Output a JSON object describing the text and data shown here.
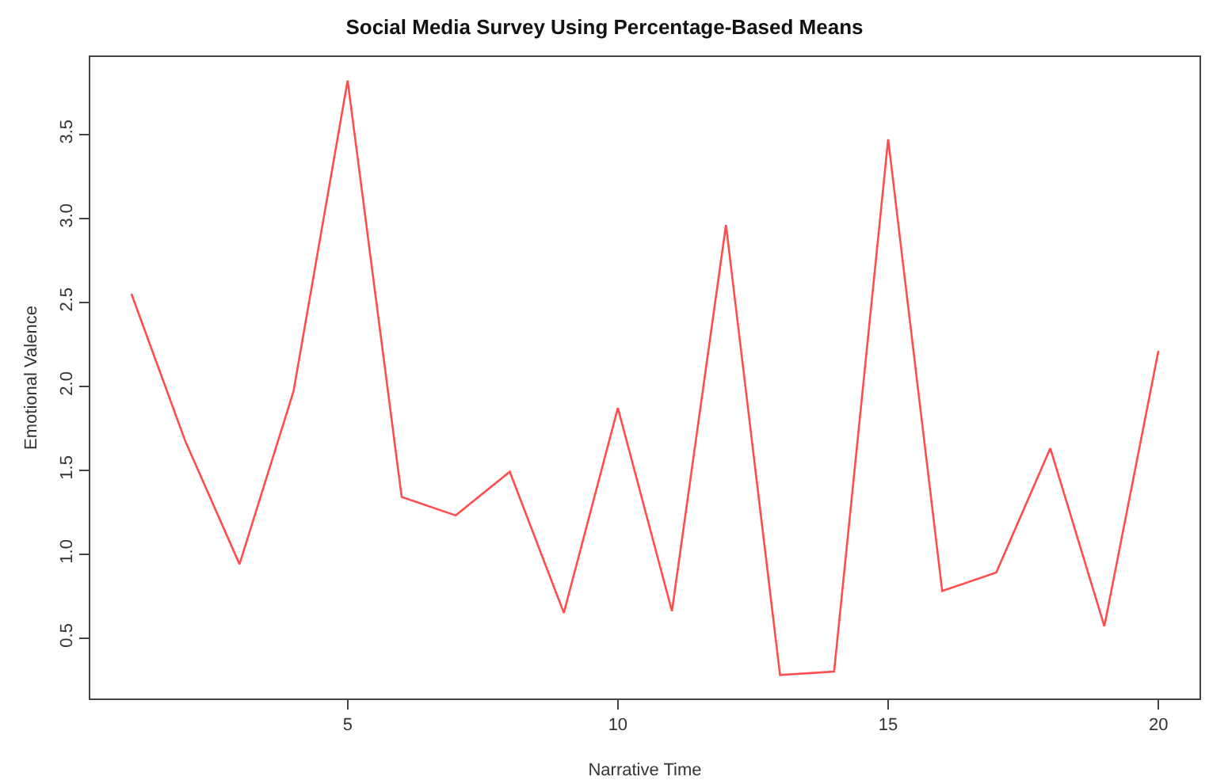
{
  "chart_data": {
    "type": "line",
    "title": "Social Media Survey Using Percentage-Based Means",
    "xlabel": "Narrative Time",
    "ylabel": "Emotional Valence",
    "x": [
      1,
      2,
      3,
      4,
      5,
      6,
      7,
      8,
      9,
      10,
      11,
      12,
      13,
      14,
      15,
      16,
      17,
      18,
      19,
      20
    ],
    "series": [
      {
        "color": "#ff4d4d",
        "values": [
          2.55,
          1.67,
          0.94,
          1.97,
          3.82,
          1.34,
          1.23,
          1.49,
          0.65,
          1.87,
          0.66,
          2.96,
          0.28,
          0.3,
          3.47,
          0.78,
          0.89,
          1.63,
          0.57,
          2.21
        ]
      }
    ],
    "xlim": [
      0.24,
      20.76
    ],
    "ylim": [
      0.14,
      3.96
    ],
    "xticks": [
      5,
      10,
      15,
      20
    ],
    "yticks": [
      0.5,
      {
        "value": 1,
        "label": "1.0"
      },
      1.5,
      {
        "value": 2,
        "label": "2.0"
      },
      2.5,
      {
        "value": 3,
        "label": "3.0"
      },
      3.5
    ],
    "marker": "none",
    "line_style": "solid"
  }
}
